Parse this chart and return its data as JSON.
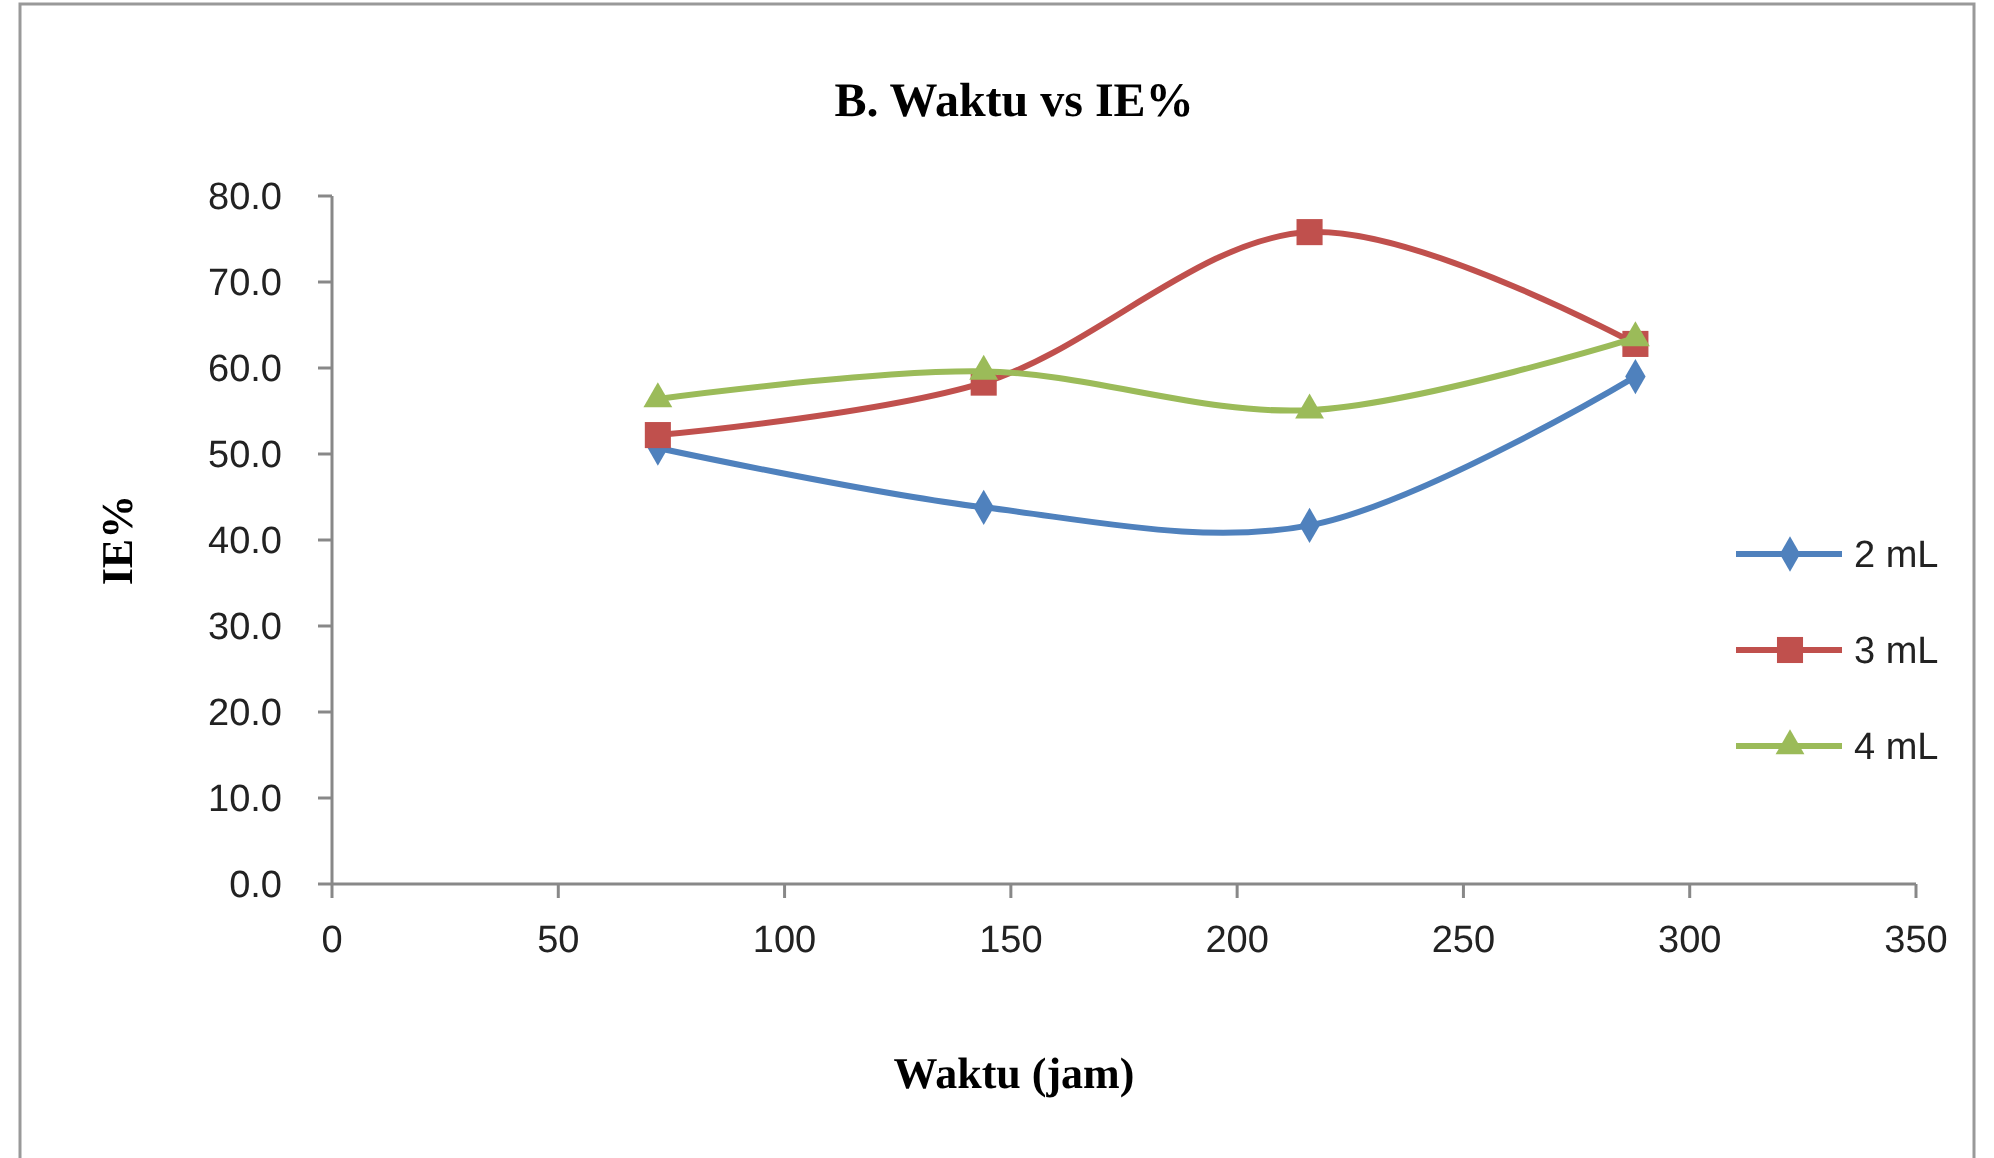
{
  "chart_data": {
    "type": "line",
    "title": "B. Waktu vs IE%",
    "xlabel": "Waktu (jam)",
    "ylabel": "IE%",
    "x": [
      72,
      144,
      216,
      288
    ],
    "series": [
      {
        "name": "2 mL",
        "color": "#4f81bd",
        "marker": "diamond",
        "values": [
          50.7,
          43.8,
          41.7,
          59.0
        ]
      },
      {
        "name": "3 mL",
        "color": "#c0504d",
        "marker": "square",
        "values": [
          52.2,
          58.3,
          75.8,
          62.8
        ]
      },
      {
        "name": "4 mL",
        "color": "#9bbb59",
        "marker": "triangle",
        "values": [
          56.4,
          59.6,
          55.1,
          63.5
        ]
      }
    ],
    "xlim": [
      0,
      350
    ],
    "xticks": [
      0,
      50,
      100,
      150,
      200,
      250,
      300,
      350
    ],
    "ylim": [
      0,
      80
    ],
    "yticks": [
      {
        "value": 0,
        "label": "0.0"
      },
      {
        "value": 10,
        "label": "10.0"
      },
      {
        "value": 20,
        "label": "20.0"
      },
      {
        "value": 30,
        "label": "30.0"
      },
      {
        "value": 40,
        "label": "40.0"
      },
      {
        "value": 50,
        "label": "50.0"
      },
      {
        "value": 60,
        "label": "60.0"
      },
      {
        "value": 70,
        "label": "70.0"
      },
      {
        "value": 80,
        "label": "80.0"
      }
    ],
    "grid": false,
    "legend": "right",
    "line_style": "solid"
  }
}
